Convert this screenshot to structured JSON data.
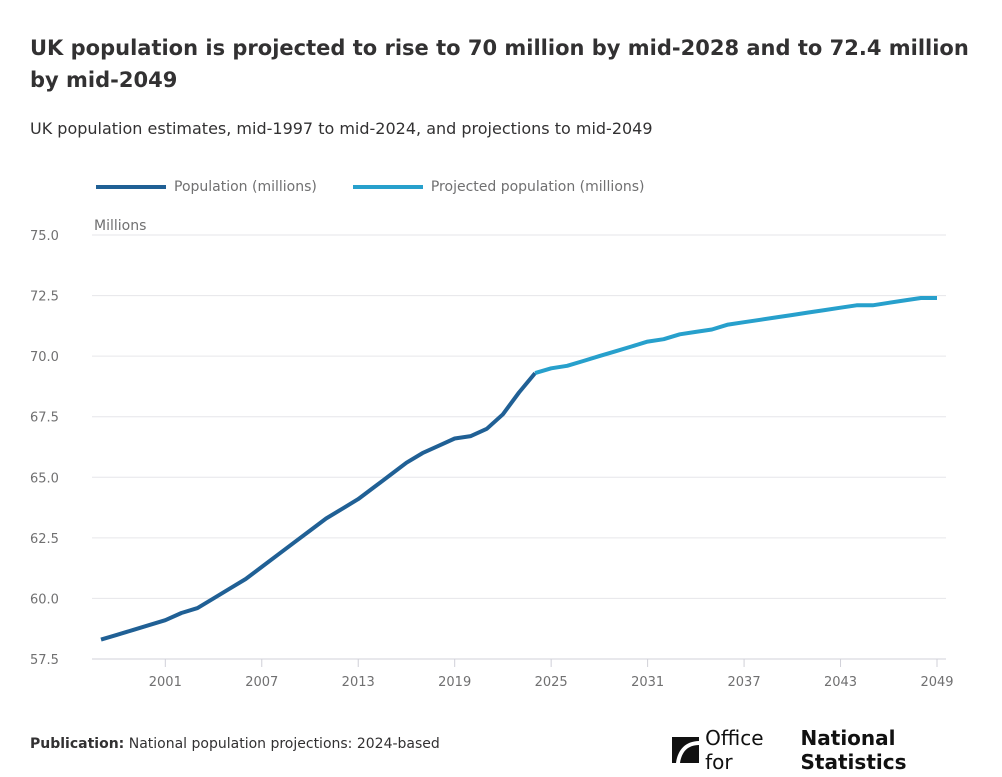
{
  "title": "UK population is projected to rise to 70 million by mid-2028 and to 72.4 million by mid-2049",
  "subtitle": "UK population estimates, mid-1997 to mid-2024, and projections to mid-2049",
  "footer": {
    "label": "Publication:",
    "text": "National population projections: 2024-based"
  },
  "logo": {
    "text_light": "Office for",
    "text_bold": "National Statistics"
  },
  "chart_data": {
    "type": "line",
    "ylabel": "Millions",
    "ylim": [
      57.5,
      75.0
    ],
    "yticks": [
      "57.5",
      "60.0",
      "62.5",
      "65.0",
      "67.5",
      "70.0",
      "72.5",
      "75.0"
    ],
    "xlim": [
      1997,
      2049
    ],
    "xticks": [
      "2001",
      "2007",
      "2013",
      "2019",
      "2025",
      "2031",
      "2037",
      "2043",
      "2049"
    ],
    "grid": "horizontal",
    "legend": "top-left",
    "series": [
      {
        "name": "Population (millions)",
        "color": "#206095",
        "x": [
          1997,
          1998,
          1999,
          2000,
          2001,
          2002,
          2003,
          2004,
          2005,
          2006,
          2007,
          2008,
          2009,
          2010,
          2011,
          2012,
          2013,
          2014,
          2015,
          2016,
          2017,
          2018,
          2019,
          2020,
          2021,
          2022,
          2023,
          2024
        ],
        "values": [
          58.3,
          58.5,
          58.7,
          58.9,
          59.1,
          59.4,
          59.6,
          60.0,
          60.4,
          60.8,
          61.3,
          61.8,
          62.3,
          62.8,
          63.3,
          63.7,
          64.1,
          64.6,
          65.1,
          65.6,
          66.0,
          66.3,
          66.6,
          66.7,
          67.0,
          67.6,
          68.5,
          69.3
        ]
      },
      {
        "name": "Projected population (millions)",
        "color": "#27a0cc",
        "x": [
          2024,
          2025,
          2026,
          2027,
          2028,
          2029,
          2030,
          2031,
          2032,
          2033,
          2034,
          2035,
          2036,
          2037,
          2038,
          2039,
          2040,
          2041,
          2042,
          2043,
          2044,
          2045,
          2046,
          2047,
          2048,
          2049
        ],
        "values": [
          69.3,
          69.5,
          69.6,
          69.8,
          70.0,
          70.2,
          70.4,
          70.6,
          70.7,
          70.9,
          71.0,
          71.1,
          71.3,
          71.4,
          71.5,
          71.6,
          71.7,
          71.8,
          71.9,
          72.0,
          72.1,
          72.1,
          72.2,
          72.3,
          72.4,
          72.4
        ]
      }
    ]
  }
}
